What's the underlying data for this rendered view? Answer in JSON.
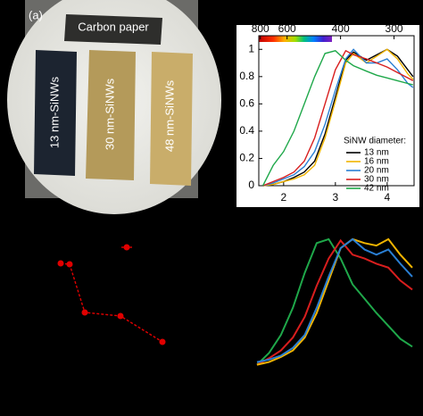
{
  "photo": {
    "label": "(a)",
    "carbon": "Carbon paper",
    "strips": [
      "13 nm-SiNWs",
      "30 nm-SiNWs",
      "48 nm-SiNWs"
    ]
  },
  "chart_data": [
    {
      "type": "line",
      "x": [
        1.6,
        1.8,
        2.0,
        2.2,
        2.4,
        2.6,
        2.8,
        3.0,
        3.2,
        3.35,
        3.6,
        3.8,
        4.0,
        4.2,
        4.4,
        4.5
      ],
      "series": [
        {
          "name": "13 nm",
          "color": "#000000",
          "values": [
            0,
            0.01,
            0.03,
            0.06,
            0.1,
            0.18,
            0.38,
            0.65,
            0.92,
            0.98,
            0.92,
            0.96,
            1.0,
            0.95,
            0.85,
            0.8
          ]
        },
        {
          "name": "16 nm",
          "color": "#f0b400",
          "values": [
            0,
            0.01,
            0.03,
            0.05,
            0.08,
            0.15,
            0.35,
            0.62,
            0.9,
            0.97,
            0.9,
            0.95,
            1.0,
            0.93,
            0.82,
            0.78
          ]
        },
        {
          "name": "20 nm",
          "color": "#2a7fd4",
          "values": [
            0,
            0.02,
            0.05,
            0.08,
            0.14,
            0.25,
            0.45,
            0.7,
            0.93,
            1.0,
            0.9,
            0.9,
            0.93,
            0.85,
            0.75,
            0.72
          ]
        },
        {
          "name": "30 nm",
          "color": "#d81e1e",
          "values": [
            0,
            0.03,
            0.06,
            0.1,
            0.18,
            0.35,
            0.6,
            0.85,
            0.99,
            0.96,
            0.93,
            0.9,
            0.87,
            0.83,
            0.79,
            0.77
          ]
        },
        {
          "name": "42 nm",
          "color": "#1fa84a",
          "values": [
            0,
            0.15,
            0.25,
            0.4,
            0.6,
            0.8,
            0.97,
            0.99,
            0.92,
            0.88,
            0.84,
            0.81,
            0.79,
            0.77,
            0.75,
            0.74
          ]
        }
      ],
      "xlim": [
        1.52,
        4.52
      ],
      "ylim": [
        0,
        1.1
      ],
      "xticks": [
        2,
        3,
        4
      ],
      "yticks": [
        0,
        0.2,
        0.4,
        0.6,
        0.8,
        1
      ],
      "x2ticks": [
        800,
        600,
        400,
        300
      ],
      "legend_title": "SiNW diameter:"
    },
    {
      "type": "scatter",
      "series": [
        {
          "color": "#e00000",
          "x": [
            68,
            78,
            95,
            135,
            182
          ],
          "values": [
            105,
            104,
            50,
            46,
            17
          ],
          "line": "dashed"
        },
        {
          "color": "#e00000",
          "x": [
            142
          ],
          "values": [
            123
          ],
          "x_error": [
            6
          ]
        }
      ]
    },
    {
      "type": "line",
      "series": [
        {
          "color": "#1fa84a",
          "values": [
            0.01,
            0.1,
            0.24,
            0.45,
            0.72,
            0.95,
            0.98,
            0.83,
            0.63,
            0.52,
            0.41,
            0.31,
            0.21,
            0.15
          ]
        },
        {
          "color": "#d81e1e",
          "values": [
            0.01,
            0.06,
            0.12,
            0.22,
            0.38,
            0.62,
            0.83,
            0.97,
            0.86,
            0.83,
            0.79,
            0.76,
            0.66,
            0.59
          ]
        },
        {
          "color": "#f0b400",
          "values": [
            0.01,
            0.03,
            0.07,
            0.12,
            0.22,
            0.41,
            0.66,
            0.91,
            0.98,
            0.95,
            0.93,
            0.98,
            0.86,
            0.76
          ]
        },
        {
          "color": "#2a7fd4",
          "values": [
            0.03,
            0.05,
            0.08,
            0.14,
            0.24,
            0.45,
            0.69,
            0.91,
            0.98,
            0.9,
            0.86,
            0.9,
            0.79,
            0.69
          ]
        }
      ]
    }
  ]
}
